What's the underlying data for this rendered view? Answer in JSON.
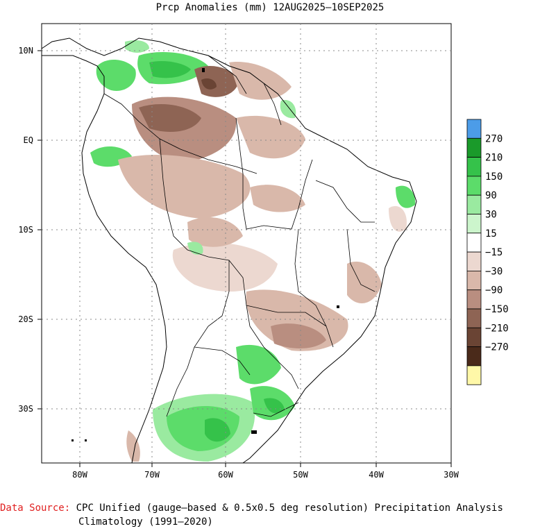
{
  "title": "Prcp Anomalies (mm) 12AUG2025–10SEP2025",
  "map": {
    "lon_labels": [
      "80W",
      "70W",
      "60W",
      "50W",
      "40W",
      "30W"
    ],
    "lat_labels": [
      "10N",
      "EQ",
      "10S",
      "20S",
      "30S"
    ]
  },
  "legend": {
    "swatches": [
      {
        "color": "#4c9ce8"
      },
      {
        "color": "#1a9a2a"
      },
      {
        "color": "#35c24a"
      },
      {
        "color": "#5cdc6a"
      },
      {
        "color": "#9aeaa0"
      },
      {
        "color": "#ccf5cc"
      },
      {
        "color": "#ffffff"
      },
      {
        "color": "#ecd8d0"
      },
      {
        "color": "#d9b8aa"
      },
      {
        "color": "#b98e80"
      },
      {
        "color": "#8e6454"
      },
      {
        "color": "#6a4434"
      },
      {
        "color": "#4a2a1a"
      },
      {
        "color": "#fff8a8"
      }
    ],
    "labels": [
      "270",
      "210",
      "150",
      "90",
      "30",
      "15",
      "−15",
      "−30",
      "−90",
      "−150",
      "−210",
      "−270"
    ]
  },
  "footer": {
    "source_label": "Data Source:",
    "source_text": " CPC Unified (gauge–based & 0.5x0.5 deg resolution) Precipitation Analysis",
    "climatology": "Climatology (1991–2020)"
  }
}
